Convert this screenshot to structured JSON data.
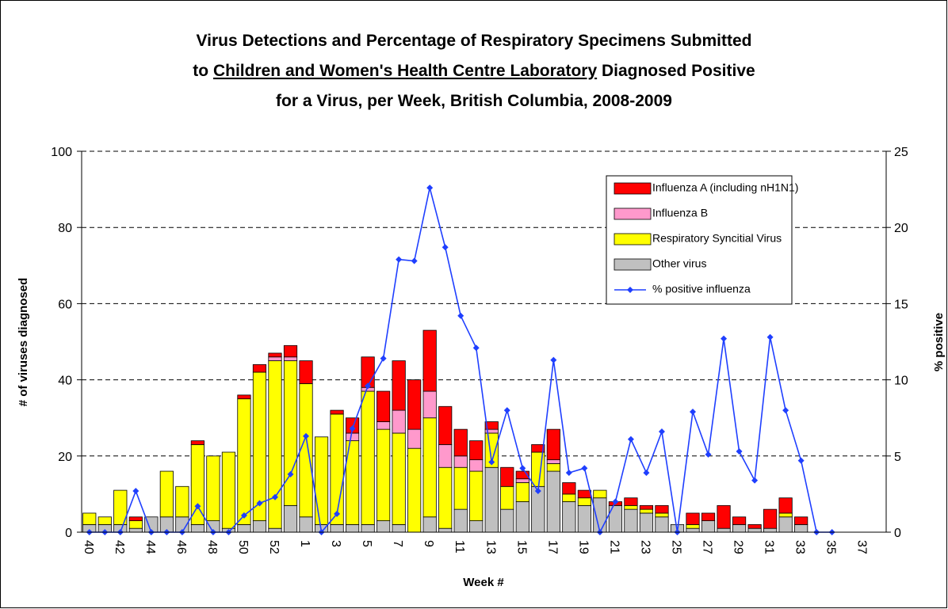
{
  "chart_data": {
    "type": "bar",
    "stacked": true,
    "title_lines": [
      [
        "Virus Detections and Percentage of Respiratory Specimens Submitted"
      ],
      [
        "to ",
        "Children and Women's Health Centre Laboratory",
        " Diagnosed Positive"
      ],
      [
        "for a Virus, per Week, British Columbia, 2008-2009"
      ]
    ],
    "underlined_part": [
      1,
      1
    ],
    "xlabel": "Week #",
    "ylabel": "# of viruses diagnosed",
    "y2label": "% positive",
    "ylim": [
      0,
      100
    ],
    "yticks": [
      0,
      20,
      40,
      60,
      80,
      100
    ],
    "y2lim": [
      0,
      25
    ],
    "y2ticks": [
      0,
      5,
      10,
      15,
      20,
      25
    ],
    "grid": true,
    "legend": "upper right",
    "categories": [
      "40",
      null,
      "42",
      null,
      "44",
      null,
      "46",
      null,
      "48",
      null,
      "50",
      null,
      "52",
      null,
      "1",
      null,
      "3",
      null,
      "5",
      null,
      "7",
      null,
      "9",
      null,
      "11",
      null,
      "13",
      null,
      "15",
      null,
      "17",
      null,
      "19",
      null,
      "21",
      null,
      "23",
      null,
      "25",
      null,
      "27",
      null,
      "29",
      null,
      "31",
      null,
      "33",
      null,
      "35",
      null,
      "37",
      null
    ],
    "series": [
      {
        "name": "Influenza A (including nH1N1)",
        "type": "bar",
        "color": "#ff0000",
        "values": [
          0,
          0,
          0,
          1,
          0,
          0,
          0,
          1,
          0,
          0,
          1,
          2,
          1,
          3,
          6,
          0,
          1,
          4,
          8,
          8,
          13,
          13,
          16,
          10,
          7,
          5,
          2,
          5,
          2,
          2,
          8,
          3,
          2,
          0,
          1,
          2,
          1,
          2,
          0,
          3,
          2,
          6,
          2,
          1,
          5,
          4,
          2,
          0,
          0,
          0,
          0,
          0
        ]
      },
      {
        "name": "Influenza B",
        "type": "bar",
        "color": "#ff99cc",
        "values": [
          0,
          0,
          0,
          0,
          0,
          0,
          0,
          0,
          0,
          0,
          0,
          0,
          1,
          1,
          0,
          0,
          0,
          2,
          1,
          2,
          6,
          5,
          7,
          6,
          3,
          3,
          1,
          0,
          1,
          0,
          1,
          0,
          0,
          0,
          0,
          0,
          0,
          0,
          0,
          0,
          0,
          0,
          0,
          0,
          0,
          0,
          0,
          0,
          0,
          0,
          0,
          0
        ]
      },
      {
        "name": "Respiratory Syncitial Virus",
        "type": "bar",
        "color": "#ffff00",
        "values": [
          3,
          2,
          9,
          2,
          0,
          12,
          8,
          21,
          17,
          20,
          33,
          39,
          44,
          38,
          35,
          23,
          29,
          22,
          35,
          24,
          24,
          22,
          26,
          16,
          11,
          13,
          9,
          6,
          5,
          9,
          2,
          2,
          2,
          2,
          0,
          1,
          1,
          1,
          0,
          1,
          0,
          0,
          0,
          0,
          0,
          1,
          0,
          0,
          0,
          0,
          0,
          0
        ]
      },
      {
        "name": "Other virus",
        "type": "bar",
        "color": "#c0c0c0",
        "values": [
          2,
          2,
          2,
          1,
          4,
          4,
          4,
          2,
          3,
          1,
          2,
          3,
          1,
          7,
          4,
          2,
          2,
          2,
          2,
          3,
          2,
          0,
          4,
          1,
          6,
          3,
          17,
          6,
          8,
          12,
          16,
          8,
          7,
          9,
          7,
          6,
          5,
          4,
          2,
          1,
          3,
          1,
          2,
          1,
          1,
          4,
          2,
          0,
          0,
          0,
          0,
          0
        ]
      },
      {
        "name": "% positive influenza",
        "type": "line",
        "axis": "y2",
        "color": "#1f3fff",
        "values": [
          0,
          0,
          0,
          2.7,
          0,
          0,
          0,
          1.7,
          0,
          0,
          1.1,
          1.9,
          2.3,
          3.8,
          6.3,
          0,
          1.2,
          6.8,
          9.6,
          11.4,
          17.9,
          17.8,
          22.6,
          18.7,
          14.2,
          12.1,
          4.6,
          8.0,
          4.2,
          2.7,
          11.3,
          3.9,
          4.2,
          0,
          2.0,
          6.1,
          3.9,
          6.6,
          0,
          7.9,
          5.1,
          12.7,
          5.3,
          3.4,
          12.8,
          8.0,
          4.7,
          0,
          0,
          null,
          null,
          null
        ]
      }
    ]
  }
}
